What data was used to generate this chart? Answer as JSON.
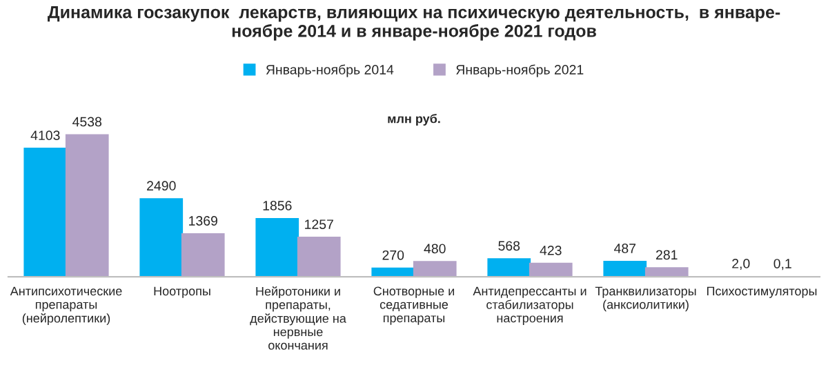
{
  "chart_data": {
    "type": "bar",
    "title": "Динамика госзакупок  лекарств, влияющих на психическую деятельность,  в январе-\nноябре 2014 и в январе-ноябре 2021 годов",
    "categories": [
      "Антипсихотические\nпрепараты\n(нейролептики)",
      "Ноотропы",
      "Нейротоники и\nпрепараты,\nдействующие на\nнервные\nокончания",
      "Снотворные и\nседативные\nпрепараты",
      "Антидепрессанты и\nстабилизаторы\nнастроения",
      "Транквилизаторы\n(анксиолитики)",
      "Психостимуляторы"
    ],
    "series": [
      {
        "name": "Январь-ноябрь 2014",
        "color": "#00b0f0",
        "values": [
          4103,
          2490,
          1856,
          270,
          568,
          487,
          2.0
        ],
        "value_labels": [
          "4103",
          "2490",
          "1856",
          "270",
          "568",
          "487",
          "2,0"
        ]
      },
      {
        "name": "Январь-ноябрь 2021",
        "color": "#b3a2c7",
        "values": [
          4538,
          1369,
          1257,
          480,
          423,
          281,
          0.1
        ],
        "value_labels": [
          "4538",
          "1369",
          "1257",
          "480",
          "423",
          "281",
          "0,1"
        ]
      }
    ],
    "annotations": [
      "млн руб."
    ],
    "legend": "top",
    "grid": false
  }
}
